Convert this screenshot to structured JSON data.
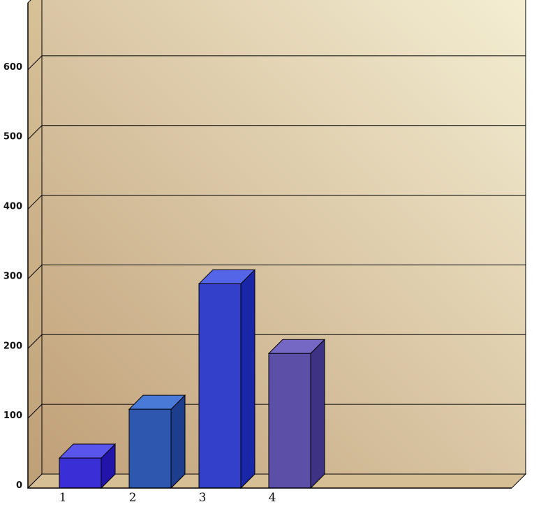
{
  "chart_data": {
    "type": "bar",
    "categories": [
      "1",
      "2",
      "3",
      "4"
    ],
    "values": [
      43,
      113,
      293,
      193
    ],
    "ylim": [
      0,
      700
    ],
    "yticks": [
      "0",
      "100",
      "200",
      "300",
      "400",
      "500",
      "600"
    ],
    "grid": true,
    "legend": "none",
    "style": "3d-box",
    "bar_colors": [
      {
        "front": "#3a2fd6",
        "top": "#5a55ec",
        "side": "#2214a8"
      },
      {
        "front": "#2e58b0",
        "top": "#4a7ad8",
        "side": "#1c3e8c"
      },
      {
        "front": "#3340c9",
        "top": "#5565e8",
        "side": "#1a26a8"
      },
      {
        "front": "#5b4fa8",
        "top": "#7468c4",
        "side": "#3d3283"
      }
    ],
    "background": {
      "from": "#c0a078",
      "to": "#f5efd4"
    }
  }
}
